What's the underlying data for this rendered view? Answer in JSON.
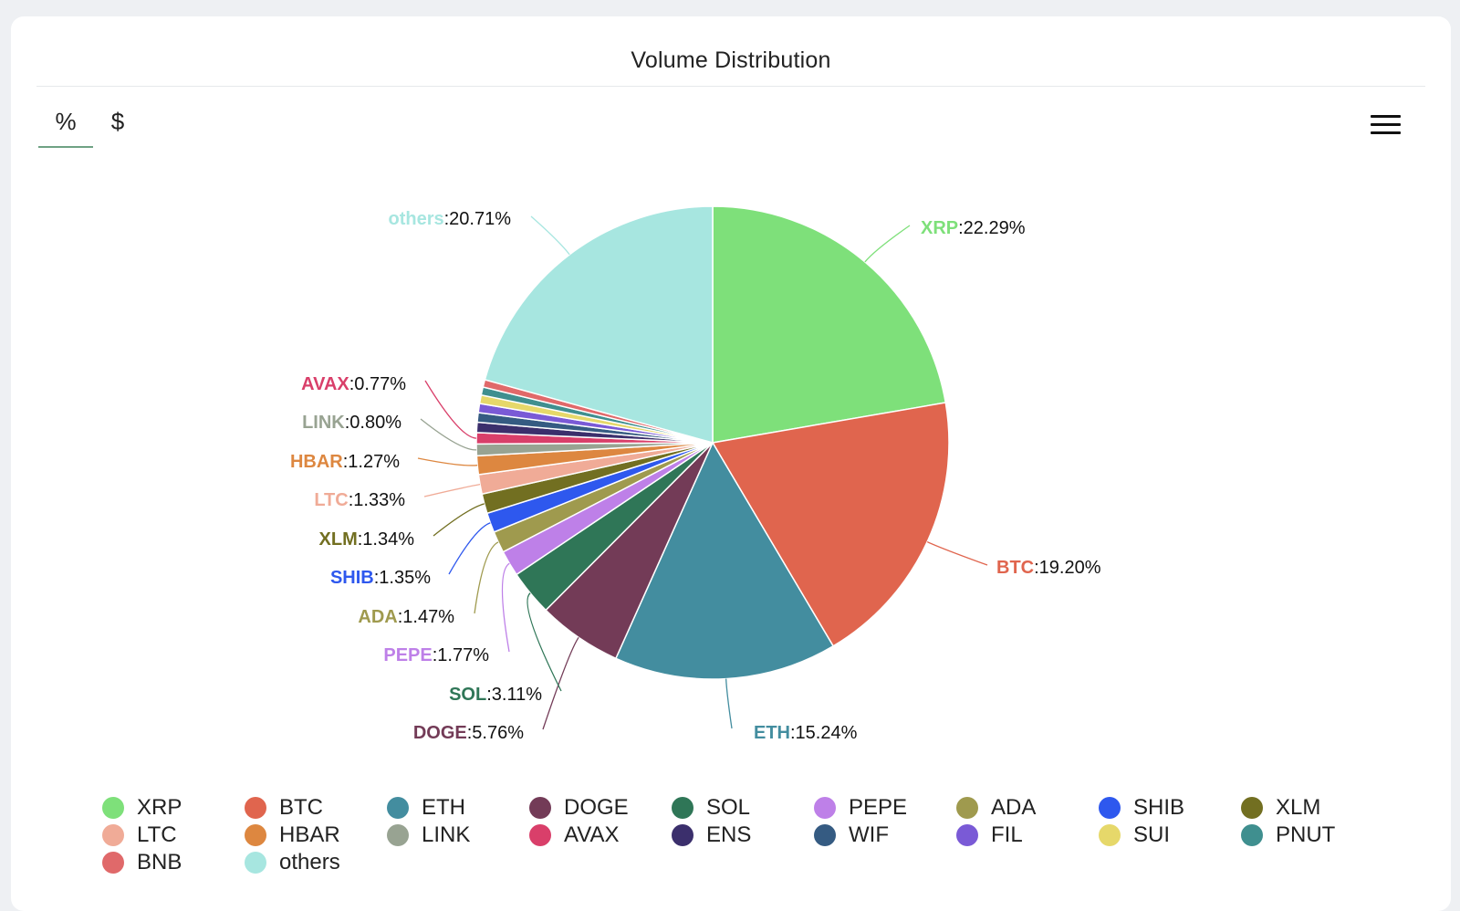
{
  "title": "Volume Distribution",
  "tabs": [
    {
      "label": "%",
      "active": true
    },
    {
      "label": "$",
      "active": false
    }
  ],
  "menu_icon": "hamburger-menu-icon",
  "colors": {
    "accent_tab_underline": "#6fa284",
    "card_background": "#ffffff",
    "page_background": "#eef0f3"
  },
  "chart_data": {
    "type": "pie",
    "title": "Volume Distribution",
    "unit": "%",
    "slices": [
      {
        "name": "XRP",
        "value": 22.29,
        "color": "#7ee07a",
        "label": true
      },
      {
        "name": "BTC",
        "value": 19.2,
        "color": "#e0654e",
        "label": true
      },
      {
        "name": "ETH",
        "value": 15.24,
        "color": "#438d9f",
        "label": true
      },
      {
        "name": "DOGE",
        "value": 5.76,
        "color": "#733b57",
        "label": true
      },
      {
        "name": "SOL",
        "value": 3.11,
        "color": "#2f7657",
        "label": true
      },
      {
        "name": "PEPE",
        "value": 1.77,
        "color": "#be80e8",
        "label": true
      },
      {
        "name": "ADA",
        "value": 1.47,
        "color": "#9f9a4e",
        "label": true
      },
      {
        "name": "SHIB",
        "value": 1.35,
        "color": "#2e58ee",
        "label": true
      },
      {
        "name": "XLM",
        "value": 1.34,
        "color": "#726f21",
        "label": true
      },
      {
        "name": "LTC",
        "value": 1.33,
        "color": "#f0ab97",
        "label": true
      },
      {
        "name": "HBAR",
        "value": 1.27,
        "color": "#dd8740",
        "label": true
      },
      {
        "name": "LINK",
        "value": 0.8,
        "color": "#98a392",
        "label": true
      },
      {
        "name": "AVAX",
        "value": 0.77,
        "color": "#d93f6a",
        "label": true
      },
      {
        "name": "ENS",
        "value": 0.7,
        "color": "#3b2f6c",
        "label": false
      },
      {
        "name": "WIF",
        "value": 0.65,
        "color": "#355b82",
        "label": false
      },
      {
        "name": "FIL",
        "value": 0.62,
        "color": "#7a5ad6",
        "label": false
      },
      {
        "name": "SUI",
        "value": 0.58,
        "color": "#e6d86a",
        "label": false
      },
      {
        "name": "PNUT",
        "value": 0.55,
        "color": "#3f8f8f",
        "label": false
      },
      {
        "name": "BNB",
        "value": 0.51,
        "color": "#e0696a",
        "label": false
      },
      {
        "name": "others",
        "value": 20.71,
        "color": "#a7e6e0",
        "label": true
      }
    ]
  },
  "footer_note": ""
}
